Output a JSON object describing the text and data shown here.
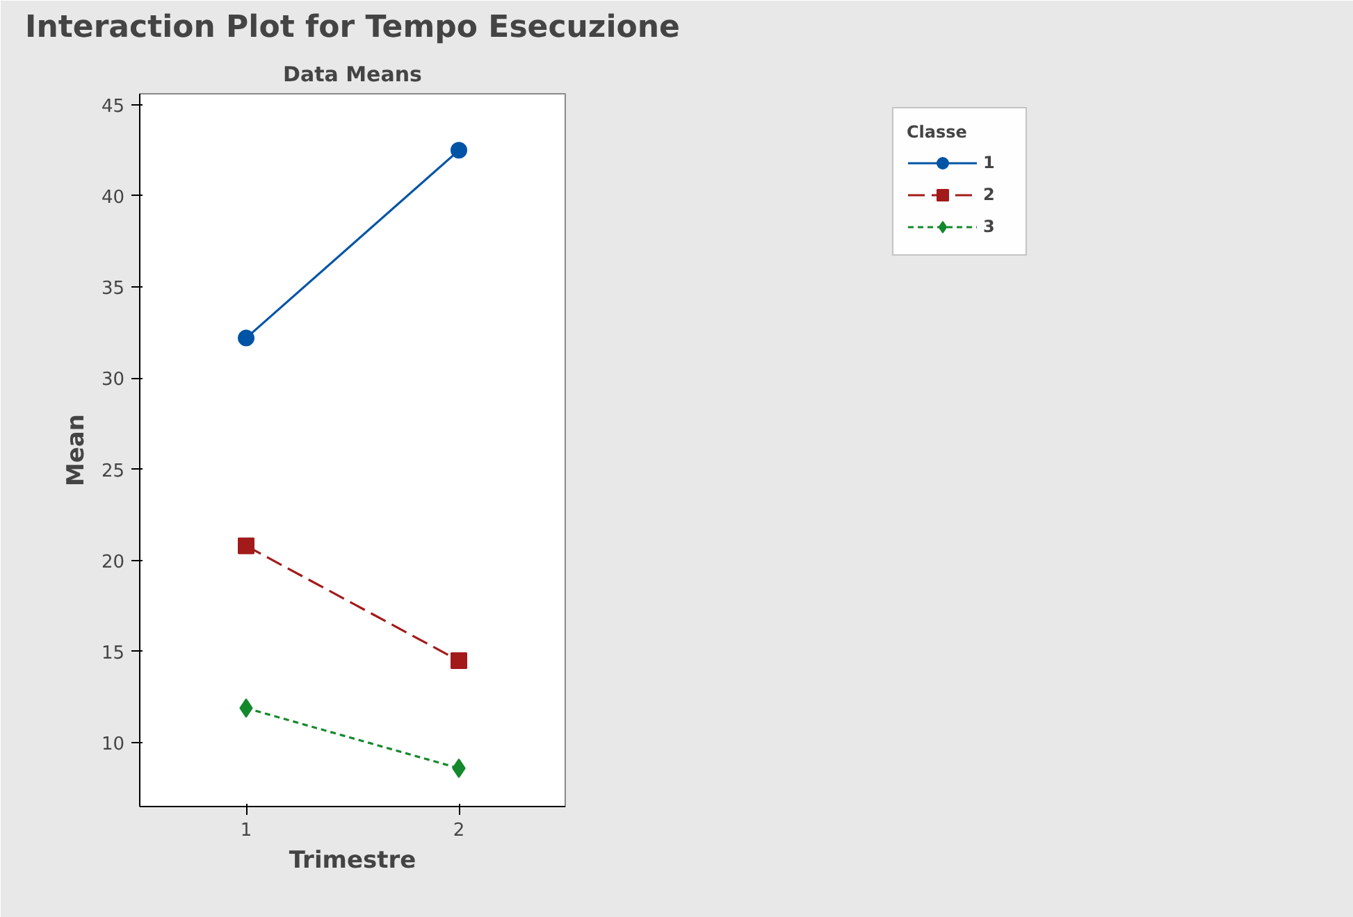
{
  "chart_data": {
    "type": "line",
    "title": "Interaction Plot for Tempo Esecuzione",
    "subtitle": "Data Means",
    "xlabel": "Trimestre",
    "ylabel": "Mean",
    "legend_title": "Classe",
    "x": [
      1,
      2
    ],
    "xlim": [
      0.5,
      2.5
    ],
    "xticks": [
      1,
      2
    ],
    "ylim": [
      6.5,
      45.6
    ],
    "yticks": [
      10,
      15,
      20,
      25,
      30,
      35,
      40,
      45
    ],
    "grid": false,
    "legend": "top right",
    "series": [
      {
        "name": "1",
        "color": "#0054a6",
        "values": [
          32.2,
          42.5
        ],
        "marker": "circle",
        "line_style": "solid"
      },
      {
        "name": "2",
        "color": "#a31a1a",
        "values": [
          20.8,
          14.5
        ],
        "marker": "square",
        "line_style": "dashed"
      },
      {
        "name": "3",
        "color": "#14892c",
        "values": [
          11.9,
          8.6
        ],
        "marker": "diamond",
        "line_style": "dotted"
      }
    ]
  }
}
